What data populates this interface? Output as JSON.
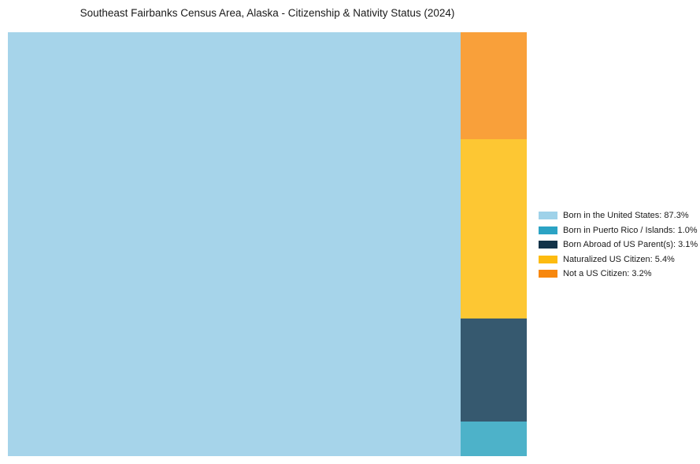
{
  "title": "Southeast Fairbanks Census Area, Alaska - Citizenship & Nativity Status (2024)",
  "chart_data": {
    "type": "treemap",
    "title": "Southeast Fairbanks Census Area, Alaska - Citizenship & Nativity Status (2024)",
    "value_unit": "percent",
    "legend_position": "right",
    "layout": "one large block on left (87.3%), remaining categories stacked top-to-bottom in right column: Not a US Citizen, Naturalized US Citizen, Born Abroad of US Parent(s), Born in Puerto Rico / Islands",
    "segments": [
      {
        "label": "Born in the United States",
        "value": 87.3,
        "legend_label": "Born in the United States: 87.3%",
        "block_color": "#a6d4ea",
        "legend_color": "#9fd2e9"
      },
      {
        "label": "Born in Puerto Rico / Islands",
        "value": 1.0,
        "legend_label": "Born in Puerto Rico / Islands: 1.0%",
        "block_color": "#4db2c9",
        "legend_color": "#2ba3c4"
      },
      {
        "label": "Born Abroad of US Parent(s)",
        "value": 3.1,
        "legend_label": "Born Abroad of US Parent(s): 3.1%",
        "block_color": "#36596f",
        "legend_color": "#123349"
      },
      {
        "label": "Naturalized US Citizen",
        "value": 5.4,
        "legend_label": "Naturalized US Citizen: 5.4%",
        "block_color": "#fdc733",
        "legend_color": "#fdbb10"
      },
      {
        "label": "Not a US Citizen",
        "value": 3.2,
        "legend_label": "Not a US Citizen: 3.2%",
        "block_color": "#f9a03a",
        "legend_color": "#f7870e"
      }
    ]
  }
}
